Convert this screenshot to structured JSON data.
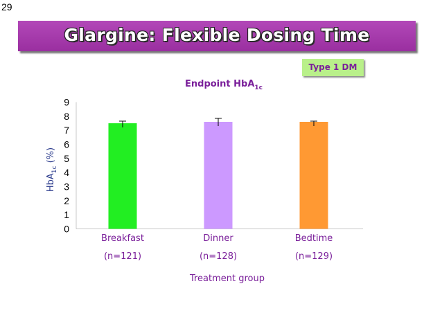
{
  "slide_number": "29",
  "title": "Glargine: Flexible Dosing Time",
  "badge": "Type 1 DM",
  "colors": {
    "title_bar": "#a63bac",
    "badge_bg": "#b9f08a",
    "text_purple": "#7a1f9a",
    "label_blue": "#2a3a8c"
  },
  "chart_data": {
    "type": "bar",
    "title": "Endpoint HbA",
    "title_sub": "1c",
    "ylabel": "HbA",
    "ylabel_sub": "1c",
    "ylabel_suffix": " (%)",
    "xlabel": "Treatment group",
    "ylim": [
      0,
      9
    ],
    "yticks": [
      "0",
      "1",
      "2",
      "3",
      "4",
      "5",
      "6",
      "7",
      "8",
      "9"
    ],
    "categories": [
      "Breakfast",
      "Dinner",
      "Bedtime"
    ],
    "n_labels": [
      "(n=121)",
      "(n=128)",
      "(n=129)"
    ],
    "values": [
      7.5,
      7.6,
      7.6
    ],
    "error_upper": [
      0.15,
      0.25,
      0.05
    ],
    "bar_colors": [
      "#22ee22",
      "#cc99ff",
      "#ff9933"
    ],
    "grid": false
  }
}
